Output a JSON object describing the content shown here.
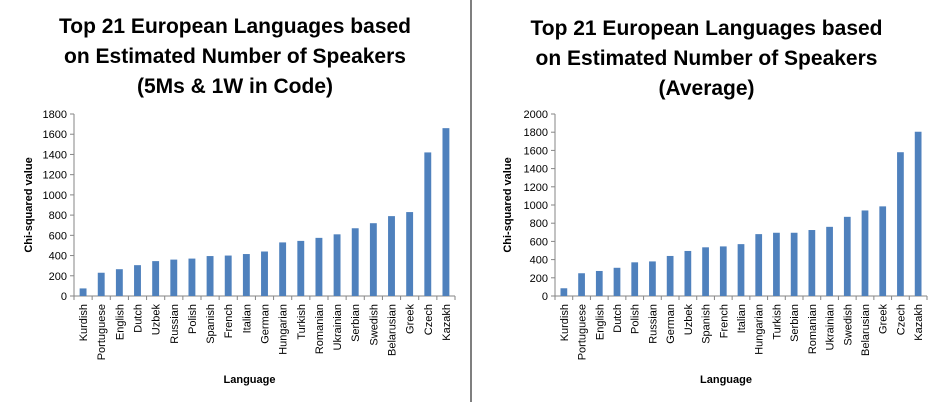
{
  "chart_data": [
    {
      "type": "bar",
      "title": [
        "Top 21 European Languages based",
        "on Estimated Number of Speakers",
        "(5Ms & 1W in Code)"
      ],
      "xlabel": "Language",
      "ylabel": "Chi-squared value",
      "ylim": [
        0,
        1800
      ],
      "ytick_step": 200,
      "categories": [
        "Kurdish",
        "Portuguese",
        "English",
        "Dutch",
        "Uzbek",
        "Russian",
        "Polish",
        "Spanish",
        "French",
        "Italian",
        "German",
        "Hungarian",
        "Turkish",
        "Romanian",
        "Ukrainian",
        "Serbian",
        "Swedish",
        "Belarusian",
        "Greek",
        "Czech",
        "Kazakh"
      ],
      "values": [
        75,
        230,
        265,
        305,
        345,
        360,
        370,
        395,
        400,
        415,
        440,
        530,
        545,
        575,
        610,
        670,
        720,
        790,
        830,
        1420,
        1660
      ],
      "color": "#4f81bd",
      "grid": false,
      "legend": "none"
    },
    {
      "type": "bar",
      "title": [
        "Top 21 European Languages based",
        "on Estimated Number of Speakers",
        "(Average)"
      ],
      "xlabel": "Language",
      "ylabel": "Chi-squared value",
      "ylim": [
        0,
        2000
      ],
      "ytick_step": 200,
      "categories": [
        "Kurdish",
        "Portuguese",
        "English",
        "Dutch",
        "Polish",
        "Russian",
        "German",
        "Uzbek",
        "Spanish",
        "French",
        "Italian",
        "Hungarian",
        "Turkish",
        "Serbian",
        "Romanian",
        "Ukrainian",
        "Swedish",
        "Belarusian",
        "Greek",
        "Czech",
        "Kazakh"
      ],
      "values": [
        85,
        250,
        275,
        310,
        370,
        380,
        440,
        495,
        535,
        545,
        570,
        680,
        695,
        695,
        725,
        760,
        870,
        940,
        985,
        1580,
        1805
      ],
      "color": "#4f81bd",
      "grid": false,
      "legend": "none"
    }
  ]
}
